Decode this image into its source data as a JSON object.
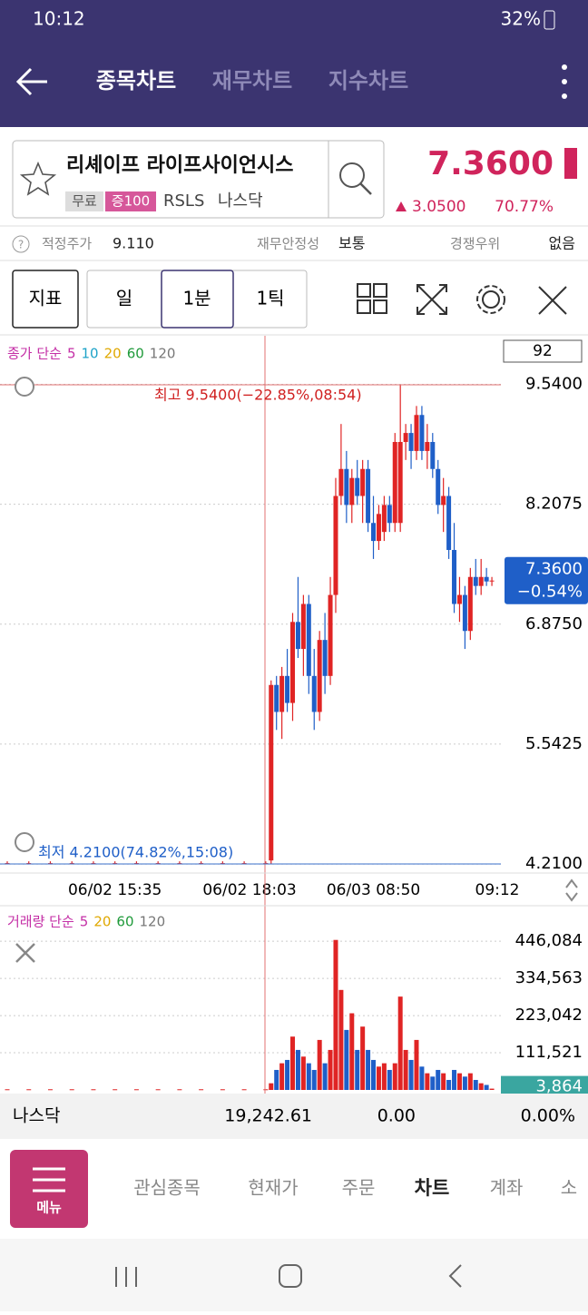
{
  "status_bar": {
    "time": "10:12",
    "battery": "32%"
  },
  "header": {
    "tabs": [
      "종목차트",
      "재무차트",
      "지수차트"
    ]
  },
  "stock": {
    "name": "리셰이프 라이프사이언시스",
    "badges": [
      "무료",
      "증100"
    ],
    "ticker": "RSLS",
    "market": "나스닥",
    "price": "7.3600",
    "change": "3.0500",
    "change_pct": "70.77%"
  },
  "metrics": [
    {
      "label": "적정주가",
      "value": "9.110"
    },
    {
      "label": "재무안정성",
      "value": "보통"
    },
    {
      "label": "경쟁우위",
      "value": "없음"
    }
  ],
  "toolbar": {
    "buttons": [
      "지표",
      "일",
      "1분",
      "1틱"
    ]
  },
  "chart_data": [
    {
      "type": "candlestick",
      "legend_prefix": "종가 단순",
      "moving_averages": [
        {
          "name": "5",
          "color": "#c42fa6"
        },
        {
          "name": "10",
          "color": "#1ea3c8"
        },
        {
          "name": "20",
          "color": "#e0a800"
        },
        {
          "name": "60",
          "color": "#1f9a3a"
        },
        {
          "name": "120",
          "color": "#777777"
        }
      ],
      "visible_count": "92",
      "high_label": "최고 9.5400(−22.85%,08:54)",
      "low_label": "최저 4.2100(74.82%,15:08)",
      "up_color": "#e02424",
      "down_color": "#1f5fc8",
      "ylim": [
        4.13,
        10.08
      ],
      "yticks": [
        {
          "value": 4.21,
          "label": "4.2100"
        },
        {
          "value": 5.5425,
          "label": "5.5425"
        },
        {
          "value": 6.875,
          "label": "6.8750"
        },
        {
          "value": 8.2075,
          "label": "8.2075"
        },
        {
          "value": 9.54,
          "label": "9.5400"
        }
      ],
      "xlim": [
        0,
        91
      ],
      "xticks": [
        {
          "value": 20,
          "label": "06/02 15:35"
        },
        {
          "value": 45,
          "label": "06/02 18:03"
        },
        {
          "value": 68,
          "label": "06/03 08:50"
        },
        {
          "value": 91,
          "label": "09:12"
        }
      ],
      "x": [
        0,
        4,
        8,
        12,
        16,
        20,
        24,
        28,
        32,
        36,
        40,
        44,
        48,
        49,
        50,
        51,
        52,
        53,
        54,
        55,
        56,
        57,
        58,
        59,
        60,
        61,
        62,
        63,
        64,
        65,
        66,
        67,
        68,
        69,
        70,
        71,
        72,
        73,
        74,
        75,
        76,
        77,
        78,
        79,
        80,
        81,
        82,
        83,
        84,
        85,
        86,
        87,
        88,
        89,
        90
      ],
      "open": [
        4.22,
        4.22,
        4.22,
        4.22,
        4.22,
        4.22,
        4.22,
        4.22,
        4.22,
        4.22,
        4.22,
        4.22,
        4.22,
        4.25,
        6.2,
        5.9,
        6.3,
        6.0,
        6.9,
        6.6,
        7.1,
        6.3,
        5.9,
        6.7,
        6.3,
        7.2,
        8.3,
        8.6,
        8.2,
        8.5,
        8.3,
        8.6,
        8.0,
        7.8,
        7.9,
        8.2,
        8.0,
        8.0,
        8.9,
        9.0,
        8.8,
        9.2,
        8.8,
        8.9,
        8.6,
        8.2,
        8.3,
        7.7,
        7.1,
        7.2,
        6.8,
        7.4,
        7.3,
        7.4,
        7.35
      ],
      "high": [
        4.24,
        4.24,
        4.24,
        4.24,
        4.24,
        4.24,
        4.24,
        4.24,
        4.24,
        4.24,
        4.24,
        4.24,
        4.24,
        6.25,
        6.3,
        6.4,
        6.6,
        7.0,
        7.4,
        7.2,
        7.2,
        6.6,
        6.8,
        7.0,
        7.4,
        8.5,
        9.1,
        8.8,
        8.6,
        8.7,
        8.7,
        8.7,
        8.3,
        8.2,
        8.3,
        8.3,
        9.0,
        9.54,
        9.1,
        9.1,
        9.3,
        9.3,
        9.1,
        9.0,
        8.7,
        8.5,
        8.4,
        8.0,
        7.4,
        7.3,
        7.5,
        7.6,
        7.6,
        7.5,
        7.4
      ],
      "low": [
        4.21,
        4.21,
        4.21,
        4.21,
        4.21,
        4.21,
        4.21,
        4.21,
        4.21,
        4.21,
        4.21,
        4.21,
        4.21,
        4.21,
        5.7,
        5.6,
        5.9,
        5.8,
        6.5,
        6.3,
        6.1,
        5.7,
        5.8,
        6.1,
        6.2,
        7.0,
        8.2,
        8.0,
        8.0,
        8.2,
        8.0,
        7.9,
        7.6,
        7.7,
        7.8,
        7.9,
        7.9,
        7.9,
        8.7,
        8.6,
        8.7,
        8.7,
        8.6,
        8.5,
        8.1,
        7.9,
        7.6,
        7.0,
        6.9,
        6.6,
        6.7,
        7.2,
        7.2,
        7.3,
        7.3
      ],
      "close": [
        4.22,
        4.22,
        4.22,
        4.22,
        4.22,
        4.22,
        4.22,
        4.22,
        4.22,
        4.22,
        4.22,
        4.22,
        4.22,
        6.2,
        5.9,
        6.3,
        6.0,
        6.9,
        6.6,
        7.1,
        6.3,
        5.9,
        6.7,
        6.3,
        7.2,
        8.3,
        8.6,
        8.2,
        8.5,
        8.3,
        8.6,
        8.0,
        7.8,
        8.1,
        8.2,
        8.0,
        8.9,
        8.9,
        9.0,
        8.8,
        9.2,
        8.8,
        8.9,
        8.6,
        8.2,
        8.3,
        7.7,
        7.1,
        7.2,
        6.8,
        7.4,
        7.3,
        7.4,
        7.35,
        7.36
      ],
      "last": {
        "value": 7.36,
        "label": "7.3600",
        "change": "−0.54%"
      }
    },
    {
      "type": "bar",
      "legend_prefix": "거래량 단순",
      "moving_averages": [
        {
          "name": "5",
          "color": "#c42fa6"
        },
        {
          "name": "20",
          "color": "#e0a800"
        },
        {
          "name": "60",
          "color": "#1f9a3a"
        },
        {
          "name": "120",
          "color": "#777777"
        }
      ],
      "ylim": [
        0,
        520000
      ],
      "yticks": [
        {
          "value": 111521,
          "label": "111,521"
        },
        {
          "value": 223042,
          "label": "223,042"
        },
        {
          "value": 334563,
          "label": "334,563"
        },
        {
          "value": 446084,
          "label": "446,084"
        }
      ],
      "values": [
        2000,
        2000,
        2000,
        2000,
        2000,
        2000,
        2000,
        2000,
        2000,
        2000,
        2000,
        2000,
        2000,
        20000,
        60000,
        80000,
        90000,
        160000,
        120000,
        100000,
        80000,
        60000,
        150000,
        80000,
        120000,
        450000,
        300000,
        180000,
        230000,
        120000,
        190000,
        120000,
        90000,
        70000,
        80000,
        60000,
        80000,
        280000,
        120000,
        90000,
        150000,
        70000,
        50000,
        40000,
        60000,
        50000,
        30000,
        60000,
        50000,
        40000,
        50000,
        30000,
        20000,
        15000,
        3864
      ],
      "last": {
        "value": 3864,
        "label": "3,864"
      }
    }
  ],
  "index_bar": {
    "name": "나스닥",
    "value": "19,242.61",
    "change": "0.00",
    "change_pct": "0.00%"
  },
  "nav": {
    "menu": "메뉴",
    "items": [
      "관심종목",
      "현재가",
      "주문",
      "차트",
      "계좌",
      "소"
    ]
  }
}
